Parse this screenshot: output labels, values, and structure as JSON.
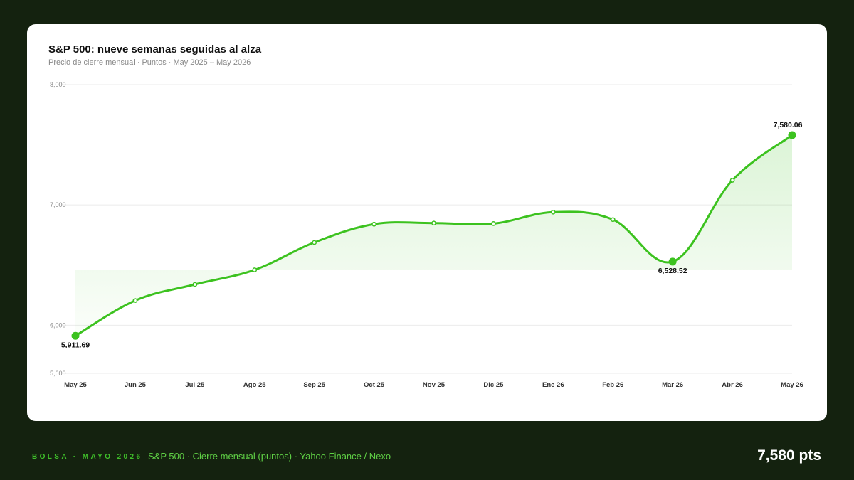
{
  "footer": {
    "kicker": "BOLSA · MAYO 2026",
    "source": "S&P 500 · Cierre mensual (puntos) · Yahoo Finance / Nexo",
    "value": "7,580 pts"
  },
  "colors": {
    "page_background": "#14220f",
    "card": "#ffffff",
    "line": "#3cc21f",
    "accent_text": "#3fbf2a",
    "title": "#111111"
  },
  "chart_data": {
    "type": "line",
    "title": "S&P 500: nueve semanas seguidas al alza",
    "subtitle": "Precio de cierre mensual · Puntos · May 2025 – May 2026",
    "xlabel": "",
    "ylabel": "",
    "categories": [
      "May 25",
      "Jun 25",
      "Jul 25",
      "Ago 25",
      "Sep 25",
      "Oct 25",
      "Nov 25",
      "Dic 25",
      "Ene 26",
      "Feb 26",
      "Mar 26",
      "Abr 26",
      "May 26"
    ],
    "series": [
      {
        "values": [
          5911.69,
          6205,
          6339,
          6460,
          6688,
          6840,
          6849,
          6845,
          6940,
          6878,
          6528.52,
          7205,
          7580.06
        ]
      }
    ],
    "ylim": [
      5600,
      8000
    ],
    "yticks": [
      5600,
      6000,
      7000,
      8000
    ],
    "ytick_labels": [
      "5,600",
      "6,000",
      "7,000",
      "8,000"
    ],
    "grid": true,
    "area_fill": true,
    "annotations": [
      {
        "index": 0,
        "label": "5,911.69",
        "position": "below"
      },
      {
        "index": 10,
        "label": "6,528.52",
        "position": "below"
      },
      {
        "index": 12,
        "label": "7,580.06",
        "position": "above"
      }
    ]
  }
}
